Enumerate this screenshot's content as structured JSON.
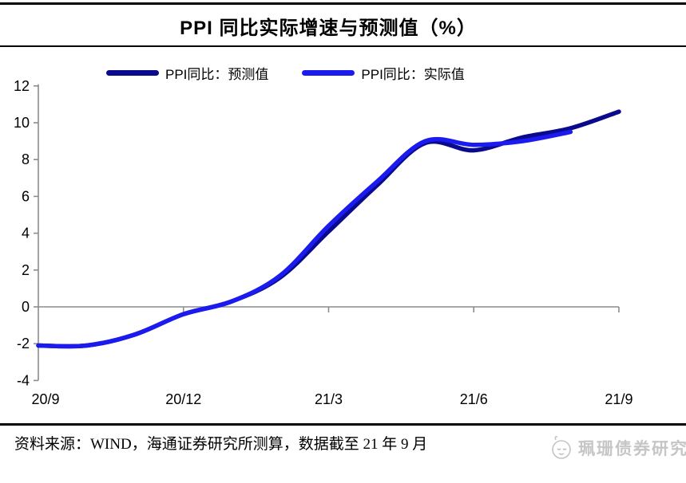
{
  "title": "PPI 同比实际增速与预测值（%）",
  "legend": [
    {
      "label": "PPI同比：预测值",
      "color": "#0a0a8c"
    },
    {
      "label": "PPI同比：实际值",
      "color": "#1b1bef"
    }
  ],
  "footer": {
    "source": "资料来源：WIND，海通证券研究所测算，数据截至 21 年 9 月",
    "watermark": "珮珊债券研究"
  },
  "colors": {
    "forecast_line": "#0a0a8c",
    "actual_line": "#1b1bef",
    "axis": "#8c8c8c",
    "text": "#000000"
  },
  "chart_data": {
    "type": "line",
    "title": "PPI 同比实际增速与预测值（%）",
    "x": [
      "20/9",
      "20/10",
      "20/11",
      "20/12",
      "21/1",
      "21/2",
      "21/3",
      "21/4",
      "21/5",
      "21/6",
      "21/7",
      "21/8",
      "21/9"
    ],
    "x_tick_labels": [
      "20/9",
      "20/12",
      "21/3",
      "21/6",
      "21/9"
    ],
    "x_tick_indices": [
      0,
      3,
      6,
      9,
      12
    ],
    "yticks": [
      12,
      10,
      8,
      6,
      4,
      2,
      0,
      -2,
      -4
    ],
    "ylim": [
      -4,
      12
    ],
    "grid": false,
    "smooth": true,
    "legend_position": "top",
    "series": [
      {
        "name": "PPI同比：预测值",
        "color": "#0a0a8c",
        "values": [
          -2.1,
          -2.1,
          -1.5,
          -0.4,
          0.3,
          1.6,
          4.1,
          6.6,
          8.9,
          8.5,
          9.2,
          9.7,
          10.6
        ]
      },
      {
        "name": "PPI同比：实际值",
        "color": "#1b1bef",
        "values": [
          -2.1,
          -2.1,
          -1.5,
          -0.4,
          0.3,
          1.7,
          4.4,
          6.8,
          9.0,
          8.8,
          9.0,
          9.5,
          null
        ]
      }
    ]
  }
}
